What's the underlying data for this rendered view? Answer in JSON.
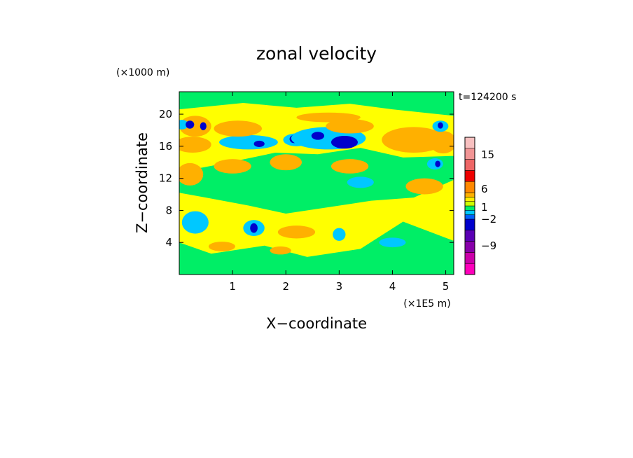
{
  "chart_data": {
    "type": "heatmap",
    "title": "zonal velocity",
    "xlabel": "X−coordinate",
    "ylabel": "Z−coordinate",
    "x_unit": "(×1E5 m)",
    "y_unit": "(×1000 m)",
    "time_label": "t=124200 s",
    "xlim": [
      0,
      5.15
    ],
    "ylim": [
      0,
      22.8
    ],
    "x_ticks": [
      1,
      2,
      3,
      4,
      5
    ],
    "y_ticks": [
      4,
      8,
      12,
      16,
      20
    ],
    "colorbar": {
      "colors": [
        "#ff00bb",
        "#cc00aa",
        "#8800aa",
        "#5a00b4",
        "#0000cc",
        "#0060ff",
        "#00c8ff",
        "#00ee66",
        "#ccff00",
        "#ffee00",
        "#ffb000",
        "#ff8800",
        "#ee0000",
        "#ee6666",
        "#f29595",
        "#f8c0c0"
      ],
      "tick_labels": [
        "15",
        "6",
        "1",
        "−2",
        "−9"
      ],
      "tick_levels": [
        15,
        6,
        1,
        -2,
        -9
      ]
    },
    "field": {
      "base_colors": {
        "low": "#ffff00",
        "mid": "#00ee66"
      },
      "blobs": [
        {
          "x": 0.3,
          "z": 18.5,
          "rx": 0.3,
          "rz": 1.3,
          "c": "#ffb000"
        },
        {
          "x": 0.05,
          "z": 18.7,
          "rx": 0.12,
          "rz": 0.6,
          "c": "#00c8ff"
        },
        {
          "x": 0.2,
          "z": 18.7,
          "rx": 0.08,
          "rz": 0.5,
          "c": "#0000cc"
        },
        {
          "x": 0.45,
          "z": 18.5,
          "rx": 0.06,
          "rz": 0.5,
          "c": "#0000cc"
        },
        {
          "x": 0.25,
          "z": 16.2,
          "rx": 0.35,
          "rz": 1.0,
          "c": "#ffb000"
        },
        {
          "x": 1.3,
          "z": 16.5,
          "rx": 0.55,
          "rz": 0.9,
          "c": "#00c8ff"
        },
        {
          "x": 1.5,
          "z": 16.3,
          "rx": 0.1,
          "rz": 0.4,
          "c": "#0000cc"
        },
        {
          "x": 1.1,
          "z": 18.2,
          "rx": 0.45,
          "rz": 1.0,
          "c": "#ffb000"
        },
        {
          "x": 2.2,
          "z": 16.8,
          "rx": 0.25,
          "rz": 0.8,
          "c": "#00c8ff"
        },
        {
          "x": 2.15,
          "z": 16.9,
          "rx": 0.08,
          "rz": 0.5,
          "c": "#0000cc"
        },
        {
          "x": 2.8,
          "z": 17.0,
          "rx": 0.7,
          "rz": 1.4,
          "c": "#00c8ff"
        },
        {
          "x": 3.1,
          "z": 16.5,
          "rx": 0.25,
          "rz": 0.8,
          "c": "#0000cc"
        },
        {
          "x": 2.6,
          "z": 17.3,
          "rx": 0.12,
          "rz": 0.5,
          "c": "#0000cc"
        },
        {
          "x": 3.2,
          "z": 18.5,
          "rx": 0.45,
          "rz": 0.9,
          "c": "#ffb000"
        },
        {
          "x": 2.8,
          "z": 19.6,
          "rx": 0.6,
          "rz": 0.6,
          "c": "#ffb000"
        },
        {
          "x": 4.4,
          "z": 16.8,
          "rx": 0.6,
          "rz": 1.6,
          "c": "#ffb000"
        },
        {
          "x": 4.95,
          "z": 16.5,
          "rx": 0.25,
          "rz": 1.4,
          "c": "#ffb000"
        },
        {
          "x": 4.9,
          "z": 18.5,
          "rx": 0.15,
          "rz": 0.7,
          "c": "#00c8ff"
        },
        {
          "x": 4.9,
          "z": 18.6,
          "rx": 0.05,
          "rz": 0.4,
          "c": "#0000cc"
        },
        {
          "x": 0.2,
          "z": 12.5,
          "rx": 0.25,
          "rz": 1.4,
          "c": "#ffb000"
        },
        {
          "x": 1.0,
          "z": 13.5,
          "rx": 0.35,
          "rz": 0.9,
          "c": "#ffb000"
        },
        {
          "x": 2.0,
          "z": 14.0,
          "rx": 0.3,
          "rz": 1.0,
          "c": "#ffb000"
        },
        {
          "x": 3.2,
          "z": 13.5,
          "rx": 0.35,
          "rz": 0.9,
          "c": "#ffb000"
        },
        {
          "x": 3.4,
          "z": 11.5,
          "rx": 0.25,
          "rz": 0.7,
          "c": "#00c8ff"
        },
        {
          "x": 4.8,
          "z": 13.8,
          "rx": 0.15,
          "rz": 0.7,
          "c": "#00c8ff"
        },
        {
          "x": 4.85,
          "z": 13.8,
          "rx": 0.05,
          "rz": 0.4,
          "c": "#0000cc"
        },
        {
          "x": 4.6,
          "z": 11.0,
          "rx": 0.35,
          "rz": 1.0,
          "c": "#ffb000"
        },
        {
          "x": 0.3,
          "z": 6.5,
          "rx": 0.25,
          "rz": 1.4,
          "c": "#00c8ff"
        },
        {
          "x": 1.4,
          "z": 5.8,
          "rx": 0.2,
          "rz": 1.0,
          "c": "#00c8ff"
        },
        {
          "x": 1.4,
          "z": 5.8,
          "rx": 0.07,
          "rz": 0.6,
          "c": "#0000cc"
        },
        {
          "x": 2.2,
          "z": 5.3,
          "rx": 0.35,
          "rz": 0.8,
          "c": "#ffb000"
        },
        {
          "x": 3.0,
          "z": 5.0,
          "rx": 0.12,
          "rz": 0.8,
          "c": "#00c8ff"
        },
        {
          "x": 0.8,
          "z": 3.5,
          "rx": 0.25,
          "rz": 0.6,
          "c": "#ffb000"
        },
        {
          "x": 4.0,
          "z": 4.0,
          "rx": 0.25,
          "rz": 0.6,
          "c": "#00c8ff"
        },
        {
          "x": 1.9,
          "z": 3.0,
          "rx": 0.2,
          "rz": 0.5,
          "c": "#ffb000"
        }
      ]
    }
  }
}
